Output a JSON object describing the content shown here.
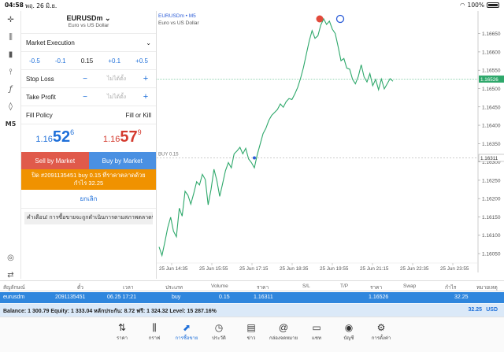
{
  "status_bar": {
    "time": "04:58",
    "date": "พฤ. 26 มิ.ย.",
    "battery": "100%"
  },
  "left_toolbar": {
    "timeframe": "M5"
  },
  "order_panel": {
    "symbol": "EURUSDm",
    "symbol_desc": "Euro vs US Dollar",
    "order_type": "Market Execution",
    "volume_steps": {
      "m05": "-0.5",
      "m01": "-0.1",
      "value": "0.15",
      "p01": "+0.1",
      "p05": "+0.5"
    },
    "stop_loss": {
      "label": "Stop Loss",
      "placeholder": "ไม่ได้ตั้ง"
    },
    "take_profit": {
      "label": "Take Profit",
      "placeholder": "ไม่ได้ตั้ง"
    },
    "fill_policy": {
      "label": "Fill Policy",
      "value": "Fill or Kill"
    },
    "bid": {
      "prefix": "1.16",
      "big": "52",
      "sup": "6"
    },
    "ask": {
      "prefix": "1.16",
      "big": "57",
      "sup": "9"
    },
    "sell_label": "Sell by Market",
    "buy_label": "Buy by Market",
    "close_label": "ปิด #2091135451 buy 0.15 ที่ราคาตลาดด้วย",
    "close_profit": "กำไร 32.25",
    "cancel_label": "ยกเลิก",
    "warning": "คำเตือน! การซื้อขายจะถูกดำเนินการตามสภาพตลาดปัจจุบัน"
  },
  "chart": {
    "symbol_title": "EURUSDm • M5",
    "symbol_desc": "Euro vs US Dollar",
    "position_line_label": "BUY 0.15",
    "bid_price_tag": "1.16526",
    "entry_price_tag": "1.16311",
    "prices": [
      "1.16650",
      "1.16600",
      "1.16550",
      "1.16500",
      "1.16450",
      "1.16400",
      "1.16350",
      "1.16300",
      "1.16250",
      "1.16200",
      "1.16150",
      "1.16100",
      "1.16050"
    ],
    "times": [
      "25 Jun 14:35",
      "25 Jun 15:55",
      "25 Jun 17:15",
      "25 Jun 18:35",
      "25 Jun 19:55",
      "25 Jun 21:15",
      "25 Jun 22:35",
      "25 Jun 23:55"
    ],
    "accent_line": "#2ea86b",
    "series": [
      1.16068,
      1.16045,
      1.16081,
      1.16121,
      1.16149,
      1.16111,
      1.16096,
      1.16174,
      1.16152,
      1.1622,
      1.16209,
      1.16185,
      1.16214,
      1.16246,
      1.16237,
      1.16266,
      1.16252,
      1.16183,
      1.16225,
      1.1628,
      1.1625,
      1.16206,
      1.16241,
      1.16276,
      1.16298,
      1.16284,
      1.16322,
      1.1633,
      1.1634,
      1.16322,
      1.16337,
      1.16308,
      1.16298,
      1.16284,
      1.1632,
      1.16348,
      1.16377,
      1.16392,
      1.16413,
      1.16427,
      1.16435,
      1.16443,
      1.16458,
      1.16449,
      1.16464,
      1.16473,
      1.1647,
      1.16485,
      1.16503,
      1.16528,
      1.16557,
      1.16594,
      1.1663,
      1.16658,
      1.16637,
      1.16644,
      1.16673,
      1.1669,
      1.16675,
      1.16684,
      1.16662,
      1.1665,
      1.16615,
      1.16576,
      1.16582,
      1.16556,
      1.16553,
      1.16525,
      1.16513,
      1.16533,
      1.16565,
      1.16532,
      1.16518,
      1.16541,
      1.16508,
      1.16525,
      1.16497,
      1.16526,
      1.16499,
      1.16513,
      1.16527,
      1.1652
    ]
  },
  "positions_table": {
    "headers": [
      "สัญลักษณ์",
      "ตั๋ว",
      "เวลา",
      "ประเภท",
      "Volume",
      "ราคา",
      "S/L",
      "T/P",
      "ราคา",
      "Swap",
      "กำไร",
      "หมายเหตุ"
    ],
    "row": {
      "symbol": "eurusdm",
      "ticket": "2091135451",
      "time": "06.25 17:21",
      "type": "buy",
      "volume": "0.15",
      "price": "1.16311",
      "current": "1.16526",
      "profit": "32.25"
    }
  },
  "balance": {
    "text": "Balance: 1 300.79 Equity: 1 333.04 หลักประกัน: 8.72 ฟรี: 1 324.32 Level: 15 287.16%",
    "pnl": "32.25",
    "currency": "USD"
  },
  "bottom_nav": [
    "ราคา",
    "กราฟ",
    "การซื้อขาย",
    "ประวัติ",
    "ข่าว",
    "กล่องจดหมาย",
    "แชท",
    "บัญชี",
    "การตั้งค่า"
  ],
  "active_tab": "การซื้อขาย"
}
